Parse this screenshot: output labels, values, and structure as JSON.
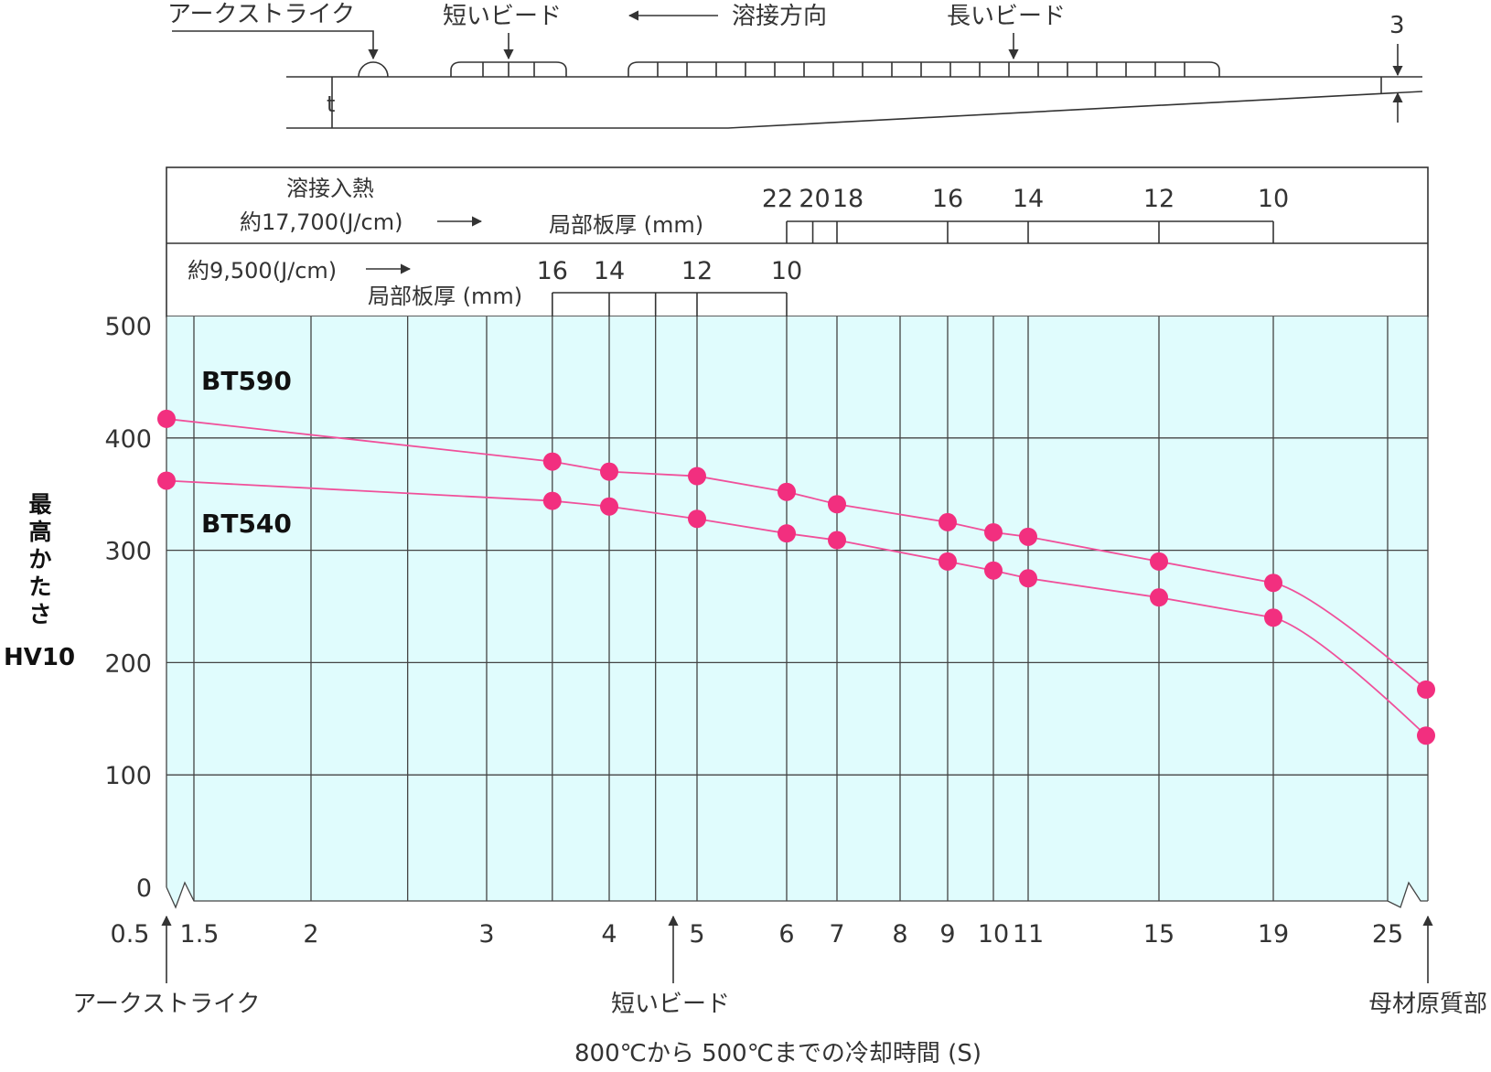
{
  "colors": {
    "plot_background": "#e0fcfd",
    "series_line": "#f0509a",
    "series_marker": "#f22f7f",
    "ink": "#333333"
  },
  "diagram": {
    "arc_strike": "アークストライク",
    "short_bead": "短いビード",
    "weld_direction": "溶接方向",
    "long_bead": "長いビード",
    "thickness_label": "t",
    "step_label": "3"
  },
  "panel": {
    "heat_input_title": "溶接入熱",
    "heat_input_high": "約17,700(J/cm)",
    "local_thickness_label": "局部板厚 (mm)",
    "heat_input_low": "約9,500(J/cm)",
    "thickness_low_label": "局部板厚 (mm)"
  },
  "chart_data": {
    "type": "line",
    "title": "",
    "xlabel": "800℃から 500℃までの冷却時間 (S)",
    "ylabel": [
      "最高かたさ",
      "HV10"
    ],
    "x_scale": "log (axis broken between 0.5–1.5 and 25–end)",
    "ylim": [
      0,
      500
    ],
    "grid": true,
    "y_ticks": [
      "0",
      "100",
      "200",
      "300",
      "400",
      "500"
    ],
    "x_ticks": [
      {
        "label": "0.5",
        "x": 0.5
      },
      {
        "label": "1.5",
        "x": 1.5
      },
      {
        "label": "2",
        "x": 2
      },
      {
        "label": "3",
        "x": 3
      },
      {
        "label": "4",
        "x": 4
      },
      {
        "label": "5",
        "x": 5
      },
      {
        "label": "6",
        "x": 6
      },
      {
        "label": "7",
        "x": 7
      },
      {
        "label": "8",
        "x": 8
      },
      {
        "label": "9",
        "x": 9
      },
      {
        "label": "10",
        "x": 10
      },
      {
        "label": "11",
        "x": 11
      },
      {
        "label": "15",
        "x": 15
      },
      {
        "label": "19",
        "x": 19
      },
      {
        "label": "25",
        "x": 25
      }
    ],
    "extra_grid_x": [
      1.5,
      2,
      2.5,
      3,
      3.5,
      4,
      4.5,
      5,
      6,
      7,
      8,
      9,
      10,
      11,
      15,
      19,
      25
    ],
    "series": [
      {
        "name": "BT590",
        "points": [
          {
            "x": 0.5,
            "y": 417
          },
          {
            "x": 3.5,
            "y": 379
          },
          {
            "x": 4,
            "y": 370
          },
          {
            "x": 5,
            "y": 366
          },
          {
            "x": 6,
            "y": 352
          },
          {
            "x": 7,
            "y": 341
          },
          {
            "x": 9,
            "y": 325
          },
          {
            "x": 10,
            "y": 316
          },
          {
            "x": 11,
            "y": 312
          },
          {
            "x": 15,
            "y": 290
          },
          {
            "x": 19,
            "y": 271
          },
          {
            "x": "母材原質部",
            "y": 176
          }
        ]
      },
      {
        "name": "BT540",
        "points": [
          {
            "x": 0.5,
            "y": 362
          },
          {
            "x": 3.5,
            "y": 344
          },
          {
            "x": 4,
            "y": 339
          },
          {
            "x": 5,
            "y": 328
          },
          {
            "x": 6,
            "y": 315
          },
          {
            "x": 7,
            "y": 309
          },
          {
            "x": 9,
            "y": 290
          },
          {
            "x": 10,
            "y": 282
          },
          {
            "x": 11,
            "y": 275
          },
          {
            "x": 15,
            "y": 258
          },
          {
            "x": 19,
            "y": 240
          },
          {
            "x": "母材原質部",
            "y": 135
          }
        ]
      }
    ],
    "annotations": [
      {
        "text": "アークストライク",
        "at_x": 0.5
      },
      {
        "text": "短いビード",
        "at_x": 4.8
      },
      {
        "text": "母材原質部",
        "at_x": "母材原質部"
      }
    ],
    "thickness_scale_high_heat": [
      {
        "label": "22",
        "x": 6
      },
      {
        "label": "20",
        "x": 6.5
      },
      {
        "label": "18",
        "x": 7
      },
      {
        "label": "16",
        "x": 9
      },
      {
        "label": "14",
        "x": 11
      },
      {
        "label": "12",
        "x": 15
      },
      {
        "label": "10",
        "x": 19
      }
    ],
    "thickness_scale_low_heat": [
      {
        "label": "16",
        "x": 3.5
      },
      {
        "label": "14",
        "x": 4
      },
      {
        "label": "12",
        "x": 5
      },
      {
        "label": "10",
        "x": 6
      }
    ]
  }
}
